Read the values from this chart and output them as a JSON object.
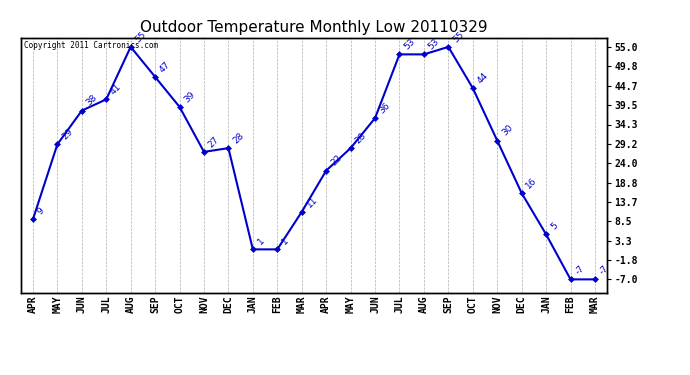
{
  "title": "Outdoor Temperature Monthly Low 20110329",
  "copyright": "Copyright 2011 Cartronics.com",
  "categories": [
    "APR",
    "MAY",
    "JUN",
    "JUL",
    "AUG",
    "SEP",
    "OCT",
    "NOV",
    "DEC",
    "JAN",
    "FEB",
    "MAR",
    "APR",
    "MAY",
    "JUN",
    "JUL",
    "AUG",
    "SEP",
    "OCT",
    "NOV",
    "DEC",
    "JAN",
    "FEB",
    "MAR"
  ],
  "values": [
    9,
    29,
    38,
    41,
    55,
    47,
    39,
    27,
    28,
    1,
    1,
    11,
    22,
    28,
    36,
    53,
    53,
    55,
    44,
    30,
    16,
    5,
    -7,
    -7
  ],
  "y_ticks": [
    -7.0,
    -1.8,
    3.3,
    8.5,
    13.7,
    18.8,
    24.0,
    29.2,
    34.3,
    39.5,
    44.7,
    49.8,
    55.0
  ],
  "ylim": [
    -10.5,
    57.5
  ],
  "line_color": "#0000cc",
  "marker_color": "#0000cc",
  "bg_color": "#ffffff",
  "grid_color": "#b0b0b0",
  "title_fontsize": 11,
  "tick_fontsize": 7,
  "annot_fontsize": 6.5
}
